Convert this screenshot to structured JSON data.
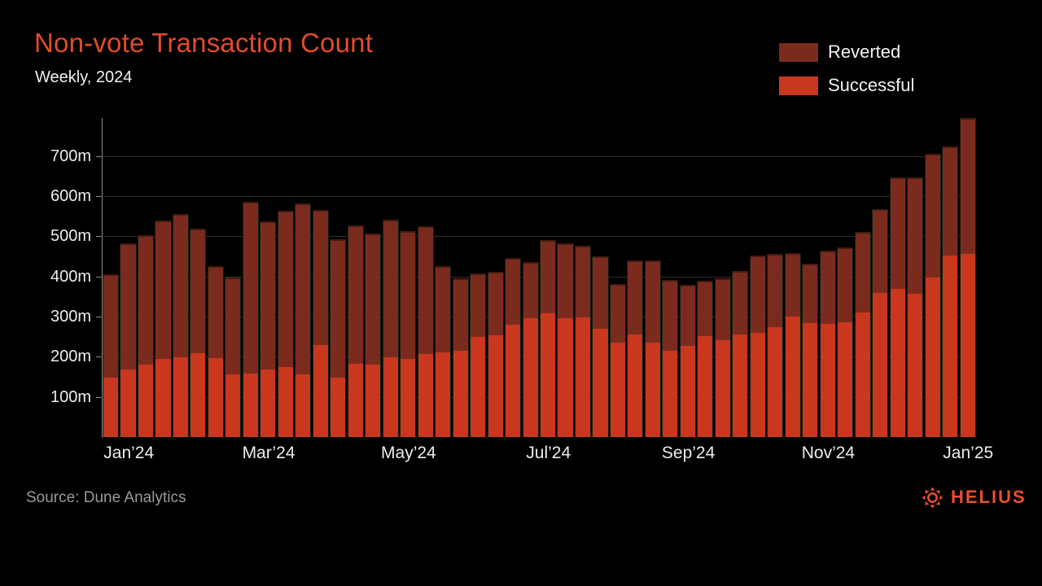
{
  "header": {
    "title": "Non-vote Transaction Count",
    "subtitle": "Weekly, 2024"
  },
  "legend": [
    {
      "label": "Reverted",
      "color": "#7b2b1e"
    },
    {
      "label": "Successful",
      "color": "#c9381e"
    }
  ],
  "footer": {
    "source": "Source: Dune Analytics",
    "brand": "HELIUS"
  },
  "colors": {
    "background": "#000000",
    "title_accent": "#e34b2b",
    "reverted": "#7b2b1e",
    "successful": "#c9381e",
    "gridline": "#2d2d2d",
    "axis": "#8a8a8a",
    "brand_accent": "#e8502c"
  },
  "chart_data": {
    "type": "bar",
    "stacked": true,
    "title": "Non-vote Transaction Count",
    "subtitle": "Weekly, 2024",
    "unit": "millions of transactions",
    "ylim": [
      0,
      795
    ],
    "yticks": [
      100,
      200,
      300,
      400,
      500,
      600,
      700
    ],
    "ytick_suffix": "m",
    "grid": true,
    "legend_position": "top-right",
    "n_bars": 50,
    "x_tick_bar_index": [
      2,
      10,
      18,
      26,
      34,
      42,
      50
    ],
    "x_tick_labels": [
      "Jan’24",
      "Mar’24",
      "May’24",
      "Jul’24",
      "Sep’24",
      "Nov’24",
      "Jan’25"
    ],
    "series": [
      {
        "name": "Successful",
        "color": "#c9381e",
        "values": [
          148,
          169,
          180,
          195,
          199,
          208,
          197,
          156,
          158,
          168,
          175,
          156,
          230,
          148,
          183,
          180,
          199,
          194,
          206,
          211,
          216,
          249,
          253,
          280,
          296,
          309,
          297,
          299,
          270,
          235,
          255,
          236,
          216,
          228,
          252,
          242,
          256,
          260,
          273,
          301,
          284,
          281,
          285,
          311,
          358,
          370,
          357,
          397,
          452,
          456
        ]
      },
      {
        "name": "Reverted",
        "color": "#7b2b1e",
        "values": [
          258,
          313,
          324,
          345,
          357,
          312,
          228,
          241,
          428,
          370,
          388,
          426,
          336,
          344,
          345,
          328,
          342,
          319,
          319,
          214,
          180,
          159,
          158,
          166,
          141,
          182,
          185,
          178,
          181,
          147,
          185,
          205,
          176,
          152,
          138,
          154,
          158,
          192,
          184,
          157,
          147,
          183,
          188,
          200,
          210,
          277,
          290,
          308,
          273,
          339
        ]
      }
    ],
    "totals": [
      406,
      482,
      504,
      540,
      556,
      520,
      425,
      397,
      586,
      538,
      563,
      582,
      566,
      492,
      528,
      508,
      541,
      513,
      525,
      425,
      396,
      408,
      411,
      446,
      437,
      491,
      482,
      477,
      451,
      382,
      440,
      441,
      392,
      380,
      390,
      396,
      414,
      452,
      457,
      458,
      431,
      464,
      473,
      511,
      568,
      647,
      647,
      705,
      725,
      795
    ]
  }
}
